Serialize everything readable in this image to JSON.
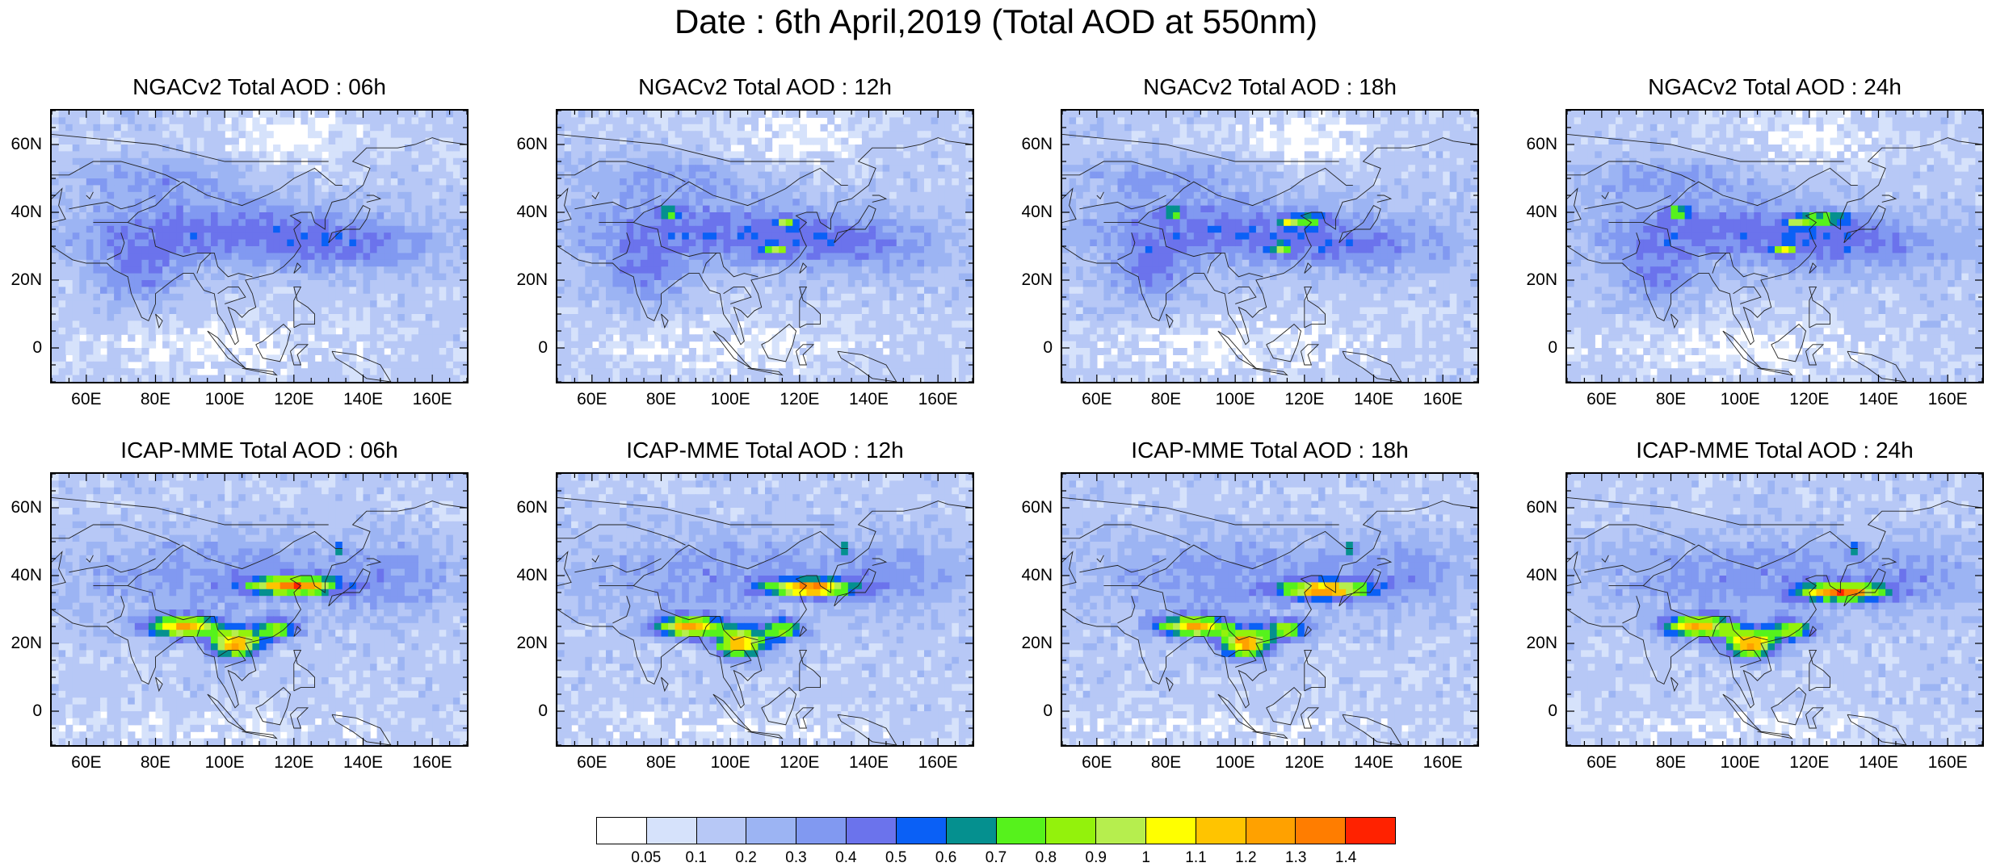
{
  "title": "Date : 6th April,2019 (Total AOD at 550nm)",
  "panels": [
    {
      "title": "NGACv2 Total AOD : 06h",
      "model": "ngac"
    },
    {
      "title": "NGACv2 Total AOD : 12h",
      "model": "ngac"
    },
    {
      "title": "NGACv2 Total AOD : 18h",
      "model": "ngac"
    },
    {
      "title": "NGACv2 Total AOD : 24h",
      "model": "ngac"
    },
    {
      "title": "ICAP-MME Total AOD : 06h",
      "model": "icap"
    },
    {
      "title": "ICAP-MME Total AOD : 12h",
      "model": "icap"
    },
    {
      "title": "ICAP-MME Total AOD : 18h",
      "model": "icap"
    },
    {
      "title": "ICAP-MME Total AOD : 24h",
      "model": "icap"
    }
  ],
  "lat_labels": [
    "60N",
    "40N",
    "20N",
    "0"
  ],
  "lat_values": [
    60,
    40,
    20,
    0
  ],
  "lon_labels": [
    "60E",
    "80E",
    "100E",
    "120E",
    "140E",
    "160E"
  ],
  "lon_values": [
    60,
    80,
    100,
    120,
    140,
    160
  ],
  "map_extent": {
    "lon_min": 50,
    "lon_max": 170,
    "lat_min": -10,
    "lat_max": 70
  },
  "colorbar": {
    "colors": [
      "#ffffff",
      "#d6e2fb",
      "#b7c8f6",
      "#9cb4f3",
      "#8199f1",
      "#6b73ec",
      "#0a60f6",
      "#05908f",
      "#56f21c",
      "#93f20c",
      "#b6ee4e",
      "#ffff00",
      "#ffc400",
      "#ffa100",
      "#ff7d00",
      "#ff2200"
    ],
    "labels": [
      "0.05",
      "0.1",
      "0.2",
      "0.3",
      "0.4",
      "0.5",
      "0.6",
      "0.7",
      "0.8",
      "0.9",
      "1",
      "1.1",
      "1.2",
      "1.3",
      "1.4"
    ]
  }
}
